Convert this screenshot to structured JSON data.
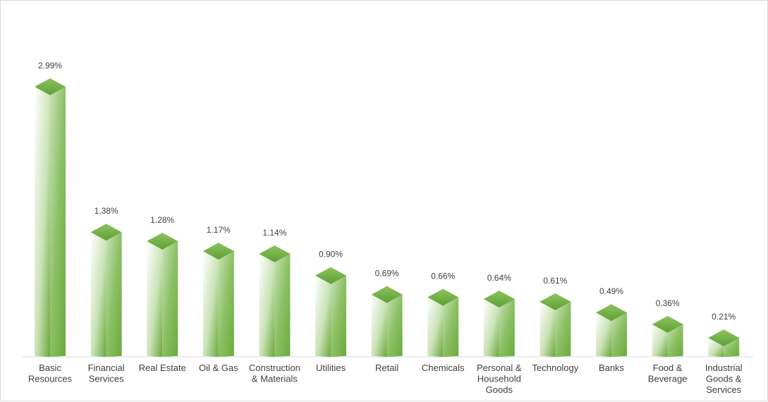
{
  "chart_data": {
    "type": "bar",
    "title": "",
    "xlabel": "",
    "ylabel": "",
    "ylim": [
      0,
      3.3
    ],
    "grid": false,
    "legend": "none",
    "style": "3d-pyramid-top-columns",
    "colors": {
      "bar_light": "#ffffff",
      "bar_mid": "#c9e2b6",
      "bar_dark": "#6aaa3c",
      "bar_top": "#5fa034",
      "baseline": "#d9d9d9",
      "text": "#404040"
    },
    "categories": [
      [
        "Basic",
        "Resources"
      ],
      [
        "Financial",
        "Services"
      ],
      [
        "Real Estate"
      ],
      [
        "Oil & Gas"
      ],
      [
        "Construction",
        "& Materials"
      ],
      [
        "Utilities"
      ],
      [
        "Retail"
      ],
      [
        "Chemicals"
      ],
      [
        "Personal &",
        "Household",
        "Goods"
      ],
      [
        "Technology"
      ],
      [
        "Banks"
      ],
      [
        "Food &",
        "Beverage"
      ],
      [
        "Industrial",
        "Goods &",
        "Services"
      ]
    ],
    "values": [
      2.99,
      1.38,
      1.28,
      1.17,
      1.14,
      0.9,
      0.69,
      0.66,
      0.64,
      0.61,
      0.49,
      0.36,
      0.21
    ],
    "data_labels": [
      "2.99%",
      "1.38%",
      "1.28%",
      "1.17%",
      "1.14%",
      "0.90%",
      "0.69%",
      "0.66%",
      "0.64%",
      "0.61%",
      "0.49%",
      "0.36%",
      "0.21%"
    ]
  }
}
